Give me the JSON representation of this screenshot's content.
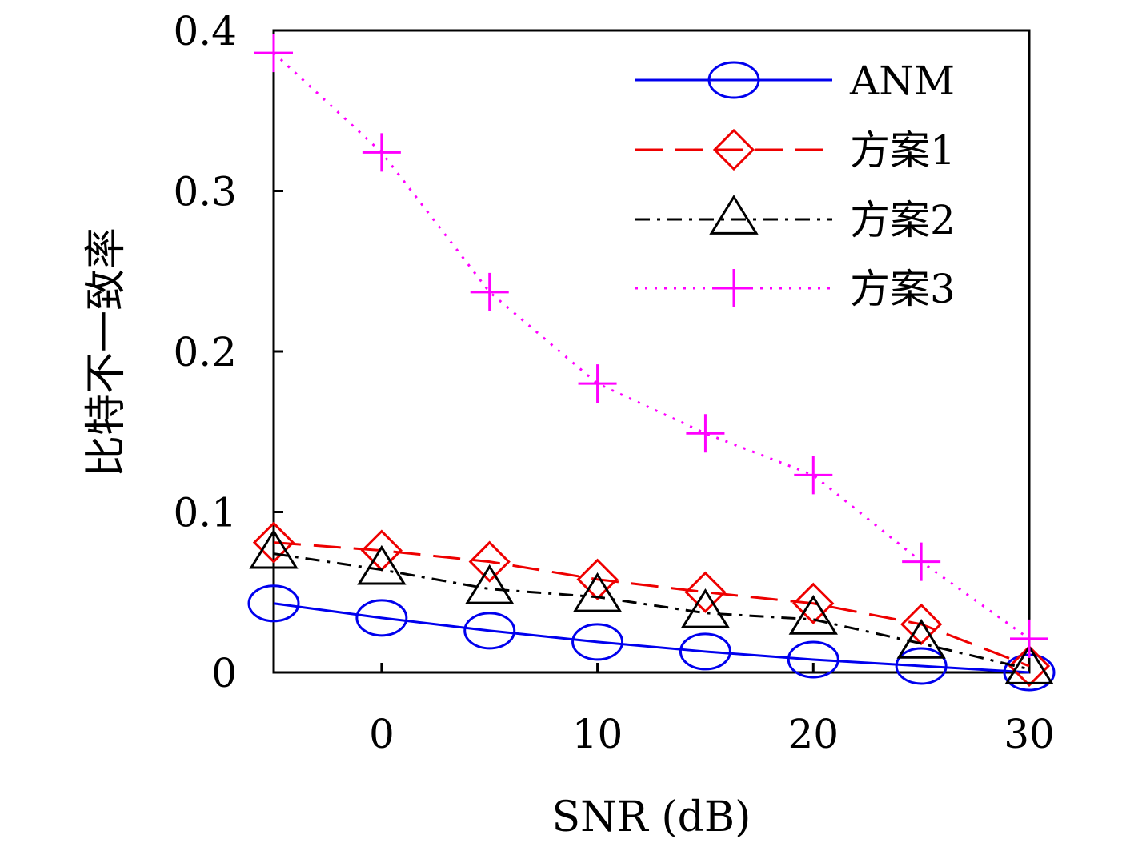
{
  "chart_data": {
    "type": "line",
    "title": "",
    "xlabel": "SNR (dB)",
    "ylabel": "比特不一致率",
    "xlim": [
      -5,
      30
    ],
    "ylim": [
      0,
      0.4
    ],
    "xticks": [
      0,
      10,
      20,
      30
    ],
    "xtick_labels": [
      "0",
      "10",
      "20",
      "30"
    ],
    "yticks": [
      0,
      0.1,
      0.2,
      0.3,
      0.4
    ],
    "ytick_labels": [
      "0",
      "0.1",
      "0.2",
      "0.3",
      "0.4"
    ],
    "x": [
      -5,
      0,
      5,
      10,
      15,
      20,
      25,
      30
    ],
    "legend_position": "top-right",
    "series": [
      {
        "name": "ANM",
        "color": "#0000ee",
        "marker": "circle",
        "line_style": "solid",
        "values": [
          0.043,
          0.034,
          0.026,
          0.019,
          0.013,
          0.008,
          0.004,
          0.0
        ]
      },
      {
        "name": "方案1",
        "color": "#ee0000",
        "marker": "diamond",
        "line_style": "dashed",
        "values": [
          0.081,
          0.076,
          0.069,
          0.058,
          0.05,
          0.043,
          0.03,
          0.004
        ]
      },
      {
        "name": "方案2",
        "color": "#000000",
        "marker": "triangle",
        "line_style": "dashdot",
        "values": [
          0.074,
          0.064,
          0.052,
          0.047,
          0.037,
          0.033,
          0.018,
          0.002
        ]
      },
      {
        "name": "方案3",
        "color": "#ff00ff",
        "marker": "plus",
        "line_style": "dotted",
        "values": [
          0.386,
          0.324,
          0.237,
          0.18,
          0.149,
          0.123,
          0.069,
          0.021
        ]
      }
    ]
  }
}
